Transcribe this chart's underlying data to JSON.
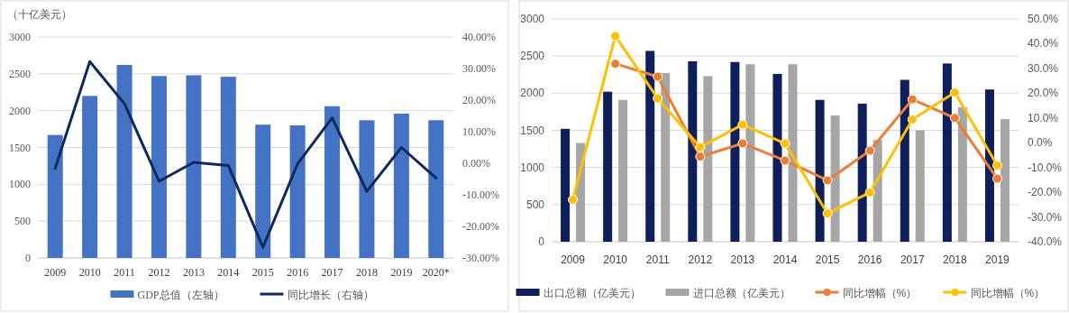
{
  "chart_data": [
    {
      "type": "bar",
      "ylabel": "（十亿美元）",
      "categories": [
        "2009",
        "2010",
        "2011",
        "2012",
        "2013",
        "2014",
        "2015",
        "2016",
        "2017",
        "2018",
        "2019",
        "2020*"
      ],
      "series": [
        {
          "name": "GDP总值（左轴）",
          "color": "#4472c4",
          "values": [
            1670,
            2200,
            2620,
            2470,
            2480,
            2460,
            1810,
            1800,
            2060,
            1870,
            1960,
            1870
          ]
        },
        {
          "name": "同比增长（右轴）",
          "color": "#0d2a5c",
          "type": "line",
          "axis": "y2",
          "values": [
            -1.6,
            32.2,
            18.9,
            -5.7,
            0.3,
            -0.7,
            -26.6,
            -0.2,
            14.4,
            -8.9,
            5.0,
            -4.7
          ]
        }
      ],
      "ylim": [
        0,
        3000
      ],
      "yticks": [
        0,
        500,
        1000,
        1500,
        2000,
        2500,
        3000
      ],
      "y2lim": [
        -30,
        40
      ],
      "y2ticks": [
        {
          "value": -30,
          "label": "-30.00%"
        },
        {
          "value": -20,
          "label": "-20.00%"
        },
        {
          "value": -10,
          "label": "-10.00%"
        },
        {
          "value": 0,
          "label": "0.00%"
        },
        {
          "value": 10,
          "label": "10.00%"
        },
        {
          "value": 20,
          "label": "20.00%"
        },
        {
          "value": 30,
          "label": "30.00%"
        },
        {
          "value": 40,
          "label": "40.00%"
        }
      ],
      "grid": "y",
      "legend": "bottom"
    },
    {
      "type": "bar",
      "categories": [
        "2009",
        "2010",
        "2011",
        "2012",
        "2013",
        "2014",
        "2015",
        "2016",
        "2017",
        "2018",
        "2019"
      ],
      "series": [
        {
          "name": "出口总额（亿美元）",
          "color": "#0e1f5b",
          "values": [
            1520,
            2020,
            2570,
            2430,
            2420,
            2260,
            1910,
            1860,
            2180,
            2400,
            2050
          ]
        },
        {
          "name": "进口总额（亿美元）",
          "color": "#a6a6a6",
          "values": [
            1330,
            1910,
            2270,
            2230,
            2390,
            2390,
            1700,
            1370,
            1500,
            1810,
            1650
          ]
        },
        {
          "name": "同比增幅（%）",
          "color": "#ed7d31",
          "type": "line",
          "axis": "y2",
          "values": [
            null,
            31.9,
            26.7,
            -5.6,
            -0.3,
            -7.2,
            -15.2,
            -3.2,
            17.5,
            10.0,
            -14.5
          ]
        },
        {
          "name": "同比增幅（%）",
          "color": "#ffc000",
          "type": "line",
          "axis": "y2",
          "values": [
            -23,
            43.1,
            17.9,
            -1.8,
            7.3,
            -0.3,
            -28.6,
            -20.1,
            9.4,
            20.3,
            -9.2
          ]
        }
      ],
      "ylim": [
        0,
        3000
      ],
      "yticks": [
        0,
        500,
        1000,
        1500,
        2000,
        2500,
        3000
      ],
      "y2lim": [
        -40,
        50
      ],
      "y2ticks": [
        {
          "value": -40,
          "label": "-40.0%"
        },
        {
          "value": -30,
          "label": "-30.0%"
        },
        {
          "value": -20,
          "label": "-20.0%"
        },
        {
          "value": -10,
          "label": "-10.0%"
        },
        {
          "value": 0,
          "label": "0.0%"
        },
        {
          "value": 10,
          "label": "10.0%"
        },
        {
          "value": 20,
          "label": "20.0%"
        },
        {
          "value": 30,
          "label": "30.0%"
        },
        {
          "value": 40,
          "label": "40.0%"
        },
        {
          "value": 50,
          "label": "50.0%"
        }
      ],
      "grid": "y",
      "legend": "bottom",
      "marker": "circle"
    }
  ]
}
